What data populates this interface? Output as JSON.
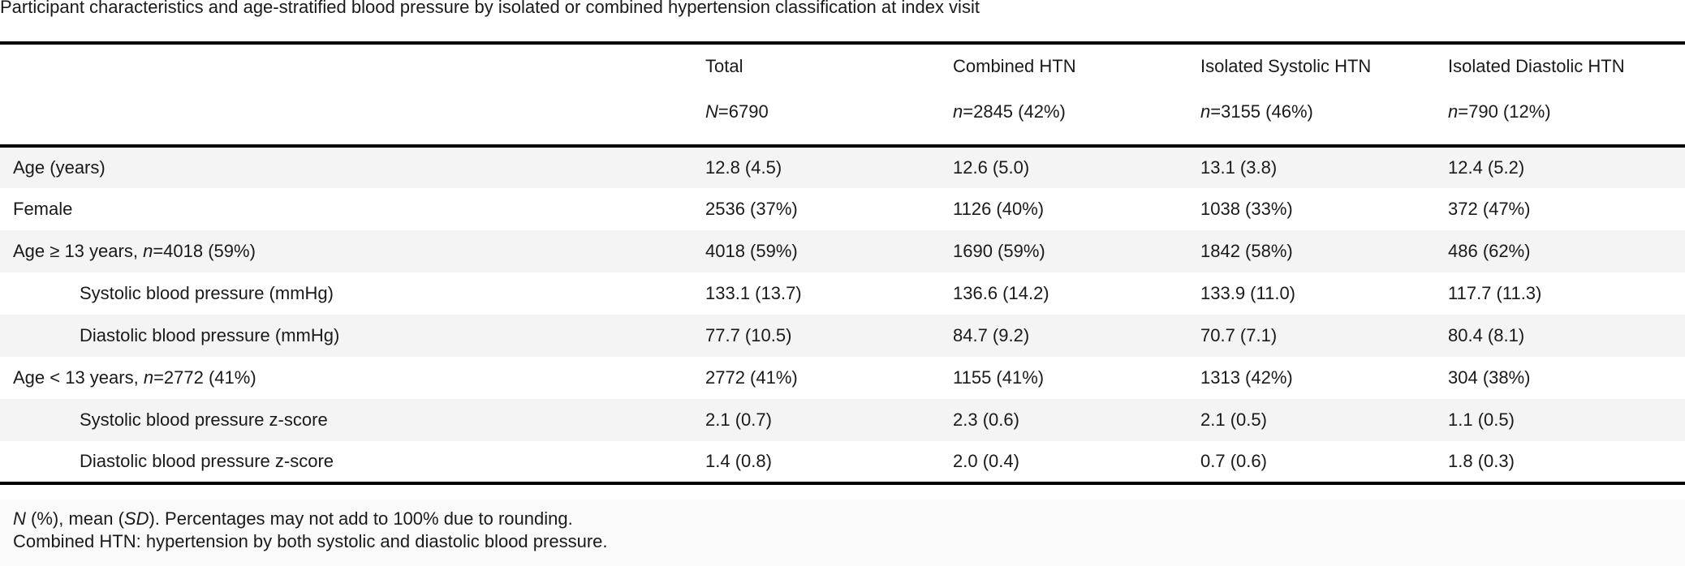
{
  "caption": "Participant characteristics and age-stratified blood pressure by isolated or combined hypertension classification at index visit",
  "columns": [
    {
      "label": "Total",
      "n_prefix": "N",
      "n_value": "=6790"
    },
    {
      "label": "Combined HTN",
      "n_prefix": "n",
      "n_value": "=2845 (42%)"
    },
    {
      "label": "Isolated Systolic HTN",
      "n_prefix": "n",
      "n_value": "=3155 (46%)"
    },
    {
      "label": "Isolated Diastolic HTN",
      "n_prefix": "n",
      "n_value": "=790 (12%)"
    }
  ],
  "rows": [
    {
      "label": "Age (years)",
      "values": [
        "12.8 (4.5)",
        "12.6 (5.0)",
        "13.1 (3.8)",
        "12.4 (5.2)"
      ]
    },
    {
      "label": "Female",
      "values": [
        "2536 (37%)",
        "1126 (40%)",
        "1038 (33%)",
        "372 (47%)"
      ]
    },
    {
      "label_pre": "Age ≥ 13 years, ",
      "label_n": "n",
      "label_post": "=4018 (59%)",
      "values": [
        "4018 (59%)",
        "1690 (59%)",
        "1842 (58%)",
        "486 (62%)"
      ]
    },
    {
      "label": "Systolic blood pressure (mmHg)",
      "values": [
        "133.1 (13.7)",
        "136.6 (14.2)",
        "133.9 (11.0)",
        "117.7 (11.3)"
      ]
    },
    {
      "label": "Diastolic blood pressure (mmHg)",
      "values": [
        "77.7 (10.5)",
        "84.7 (9.2)",
        "70.7 (7.1)",
        "80.4 (8.1)"
      ]
    },
    {
      "label_pre": "Age < 13 years, ",
      "label_n": "n",
      "label_post": "=2772 (41%)",
      "values": [
        "2772 (41%)",
        "1155 (41%)",
        "1313 (42%)",
        "304 (38%)"
      ]
    },
    {
      "label": "Systolic blood pressure z-score",
      "values": [
        "2.1 (0.7)",
        "2.3 (0.6)",
        "2.1 (0.5)",
        "1.1 (0.5)"
      ]
    },
    {
      "label": "Diastolic blood pressure z-score",
      "values": [
        "1.4 (0.8)",
        "2.0 (0.4)",
        "0.7 (0.6)",
        "1.8 (0.3)"
      ]
    }
  ],
  "footnotes": {
    "line1_n": "N",
    "line1_a": " (%), mean (",
    "line1_sd": "SD",
    "line1_b": "). Percentages may not add to 100% due to rounding.",
    "line2": "Combined HTN: hypertension by both systolic and diastolic blood pressure."
  },
  "colors": {
    "shade": "#f4f4f4",
    "rule": "#000000",
    "text": "#1a1a1a"
  }
}
